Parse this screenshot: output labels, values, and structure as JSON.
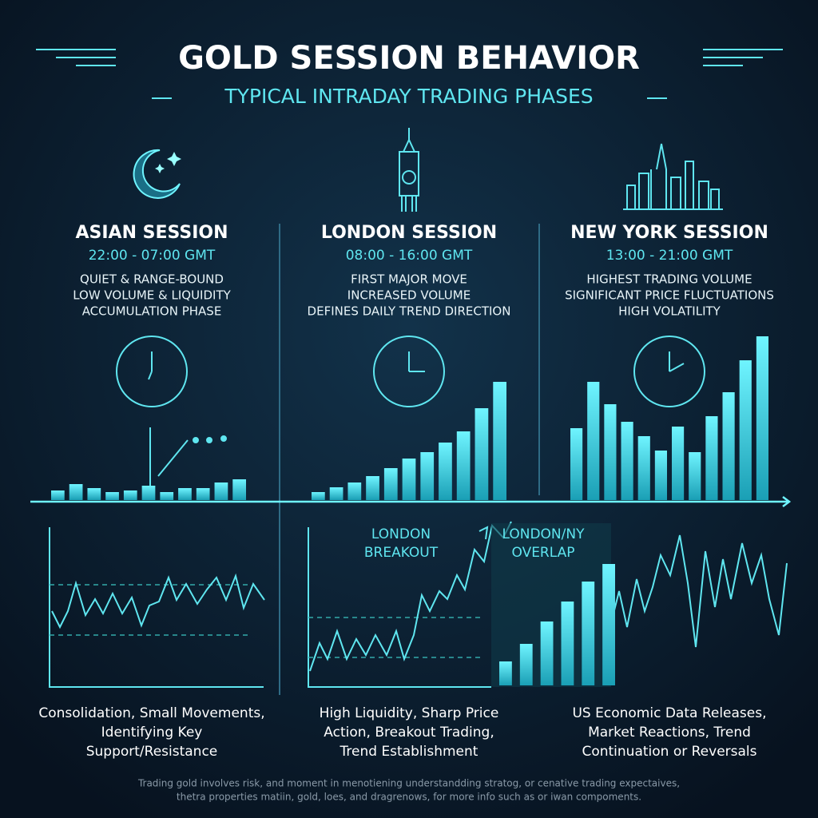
{
  "header": {
    "title": "GOLD SESSION BEHAVIOR",
    "subtitle": "TYPICAL INTRADAY TRADING PHASES"
  },
  "sessions": [
    {
      "name": "ASIAN SESSION",
      "hours": "22:00 - 07:00 GMT",
      "notes": [
        "QUIET & RANGE-BOUND",
        "LOW VOLUME & LIQUIDITY",
        "ACCUMULATION PHASE"
      ],
      "volume_bars": [
        12,
        20,
        15,
        10,
        12,
        18,
        10,
        15,
        15,
        22,
        26
      ],
      "summary": [
        "Consolidation, Small Movements,",
        "Identifying Key",
        "Support/Resistance"
      ]
    },
    {
      "name": "LONDON SESSION",
      "hours": "08:00 - 16:00 GMT",
      "notes": [
        "FIRST MAJOR MOVE",
        "INCREASED VOLUME",
        "DEFINES DAILY TREND DIRECTION"
      ],
      "volume_bars": [
        10,
        16,
        22,
        30,
        40,
        52,
        60,
        72,
        86,
        115,
        148
      ],
      "summary": [
        "High Liquidity, Sharp Price",
        "Action, Breakout Trading,",
        "Trend Establishment"
      ]
    },
    {
      "name": "NEW YORK SESSION",
      "hours": "13:00 - 21:00 GMT",
      "notes": [
        "HIGHEST TRADING VOLUME",
        "SIGNIFICANT PRICE FLUCTUATIONS",
        "HIGH VOLATILITY"
      ],
      "volume_bars": [
        90,
        148,
        120,
        98,
        80,
        62,
        92,
        60,
        105,
        135,
        175,
        205
      ],
      "summary": [
        "US Economic Data Releases,",
        "Market Reactions, Trend",
        "Continuation or Reversals"
      ]
    }
  ],
  "lower_labels": {
    "breakout": [
      "LONDON",
      "BREAKOUT"
    ],
    "overlap": [
      "LONDON/NY",
      "OVERLAP"
    ],
    "overlap_bars": [
      30,
      52,
      80,
      105,
      130,
      152
    ]
  },
  "disclaimer": [
    "Trading gold involves risk, and moment in menotiening understandding stratog, or cenative trading expectaives,",
    "thetra properties matiin, gold, loes, and dragrenows, for more info such as or iwan compoments."
  ]
}
